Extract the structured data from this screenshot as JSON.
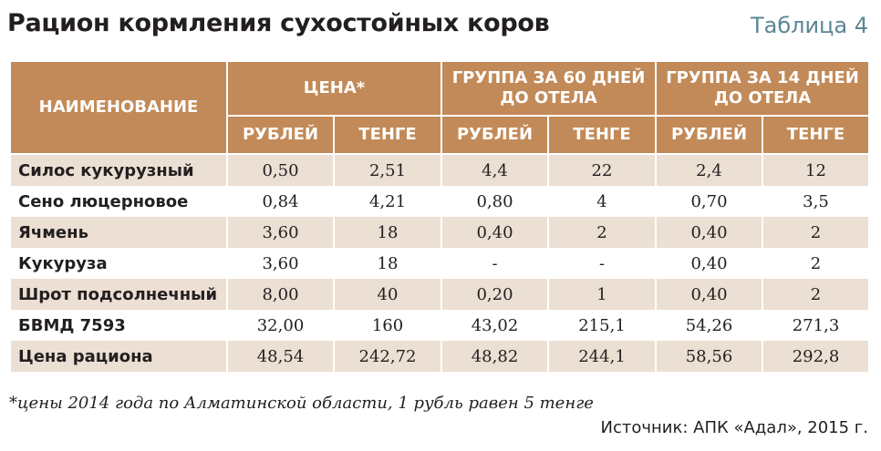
{
  "title": "Рацион кормления сухостойных коров",
  "table_tag": "Таблица 4",
  "columns": {
    "name": "НАИМЕНОВАНИЕ",
    "groups": [
      "ЦЕНА*",
      "ГРУППА ЗА 60 ДНЕЙ ДО ОТЕЛА",
      "ГРУППА ЗА 14 ДНЕЙ ДО ОТЕЛА"
    ],
    "sub": [
      "РУБЛЕЙ",
      "ТЕНГЕ",
      "РУБЛЕЙ",
      "ТЕНГЕ",
      "РУБЛЕЙ",
      "ТЕНГЕ"
    ]
  },
  "rows": [
    {
      "name": "Силос кукурузный",
      "values": [
        "0,50",
        "2,51",
        "4,4",
        "22",
        "2,4",
        "12"
      ]
    },
    {
      "name": "Сено люцерновое",
      "values": [
        "0,84",
        "4,21",
        "0,80",
        "4",
        "0,70",
        "3,5"
      ]
    },
    {
      "name": "Ячмень",
      "values": [
        "3,60",
        "18",
        "0,40",
        "2",
        "0,40",
        "2"
      ]
    },
    {
      "name": "Кукуруза",
      "values": [
        "3,60",
        "18",
        "-",
        "-",
        "0,40",
        "2"
      ]
    },
    {
      "name": "Шрот подсолнечный",
      "values": [
        "8,00",
        "40",
        "0,20",
        "1",
        "0,40",
        "2"
      ]
    },
    {
      "name": "БВМД 7593",
      "values": [
        "32,00",
        "160",
        "43,02",
        "215,1",
        "54,26",
        "271,3"
      ]
    },
    {
      "name": "Цена рациона",
      "values": [
        "48,54",
        "242,72",
        "48,82",
        "244,1",
        "58,56",
        "292,8"
      ]
    }
  ],
  "footnote": "*цены 2014 года по Алматинской области, 1 рубль равен 5 тенге",
  "source": "Источник: АПК «Адал», 2015 г.",
  "colors": {
    "header_bg": "#c28a58",
    "stripe_bg": "#ecdfd3",
    "tag_color": "#5b8693"
  }
}
